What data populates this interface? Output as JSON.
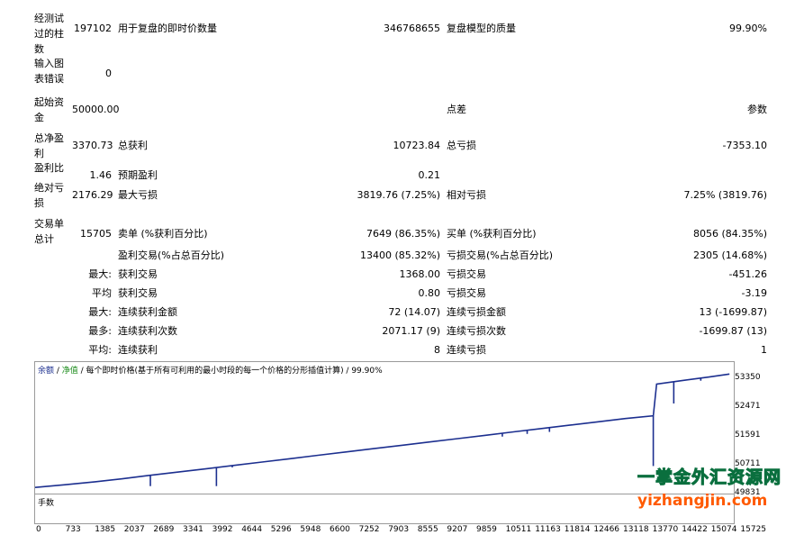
{
  "rows": [
    {
      "id": "bars",
      "label": "经测试过的柱数",
      "v1": "197102",
      "l2": "用于复盘的即时价数量",
      "v2": "346768655",
      "l3": "复盘模型的质量",
      "v3": "99.90%"
    },
    {
      "id": "errors",
      "label": "输入图表错误",
      "v1": "0",
      "l2": "",
      "v2": "",
      "l3": "",
      "v3": ""
    },
    {
      "id": "deposit",
      "label": "起始资金",
      "v1": "50000.00",
      "l2": "",
      "v2": "",
      "l3": "点差",
      "v3": "参数"
    },
    {
      "id": "netprofit",
      "label": "总净盈利",
      "v1": "3370.73",
      "l2": "总获利",
      "v2": "10723.84",
      "l3": "总亏损",
      "v3": "-7353.10"
    },
    {
      "id": "pf",
      "label": "盈利比",
      "v1": "1.46",
      "l2": "预期盈利",
      "v2": "0.21",
      "l3": "",
      "v3": ""
    },
    {
      "id": "dd",
      "label": "绝对亏损",
      "v1": "2176.29",
      "l2": "最大亏损",
      "v2": "3819.76 (7.25%)",
      "l3": "相对亏损",
      "v3": "7.25% (3819.76)"
    },
    {
      "id": "trades",
      "label": "交易单总计",
      "v1": "15705",
      "l2": "卖单 (%获利百分比)",
      "v2": "7649 (86.35%)",
      "l3": "买单 (%获利百分比)",
      "v3": "8056 (84.35%)"
    }
  ],
  "stats": [
    {
      "prefix": "",
      "l2": "盈利交易(%占总百分比)",
      "v2": "13400 (85.32%)",
      "l3": "亏损交易(%占总百分比)",
      "v3": "2305 (14.68%)"
    },
    {
      "prefix": "最大:",
      "l2": "获利交易",
      "v2": "1368.00",
      "l3": "亏损交易",
      "v3": "-451.26"
    },
    {
      "prefix": "平均",
      "l2": "获利交易",
      "v2": "0.80",
      "l3": "亏损交易",
      "v3": "-3.19"
    },
    {
      "prefix": "最大:",
      "l2": "连续获利金额",
      "v2": "72 (14.07)",
      "l3": "连续亏损金额",
      "v3": "13 (-1699.87)"
    },
    {
      "prefix": "最多:",
      "l2": "连续获利次数",
      "v2": "2071.17 (9)",
      "l3": "连续亏损次数",
      "v3": "-1699.87 (13)"
    },
    {
      "prefix": "平均:",
      "l2": "连续获利",
      "v2": "8",
      "l3": "连续亏损",
      "v3": "1"
    }
  ],
  "chart": {
    "legend_balance": "余额",
    "legend_sep1": " / ",
    "legend_equity": "净值",
    "legend_rest": " / 每个即时价格(基于所有可利用的最小时段的每一个价格的分形插值计算) / 99.90%",
    "yticks": [
      "53350",
      "52471",
      "51591",
      "50711",
      "49831"
    ],
    "volume_label": "手数",
    "xticks": [
      "0",
      "733",
      "1385",
      "2037",
      "2689",
      "3341",
      "3992",
      "4644",
      "5296",
      "5948",
      "6600",
      "7252",
      "7903",
      "8555",
      "9207",
      "9859",
      "10511",
      "11163",
      "11814",
      "12466",
      "13118",
      "13770",
      "14422",
      "15074",
      "15725"
    ],
    "balance_color": "#1c2f8f",
    "equity_color": "#1c8c1c"
  },
  "chart_data": {
    "type": "line",
    "title": "",
    "xlabel": "",
    "ylabel": "",
    "ylim": [
      49831,
      53600
    ],
    "xlim": [
      0,
      16300
    ],
    "series": [
      {
        "name": "余额",
        "x": [
          0,
          700,
          1400,
          2037,
          2600,
          3341,
          4000,
          4644,
          5296,
          5948,
          6600,
          7252,
          7903,
          8555,
          9207,
          9859,
          10511,
          11163,
          11814,
          12466,
          13118,
          13770,
          14422,
          14500,
          15074,
          15725,
          16200
        ],
        "y": [
          49960,
          50040,
          50130,
          50220,
          50310,
          50420,
          50520,
          50620,
          50720,
          50820,
          50920,
          51020,
          51120,
          51220,
          51320,
          51420,
          51520,
          51620,
          51720,
          51820,
          51920,
          52020,
          52100,
          53050,
          53150,
          53260,
          53350
        ]
      }
    ],
    "dips": [
      {
        "x": 2689,
        "y": 50000
      },
      {
        "x": 4230,
        "y": 50000
      },
      {
        "x": 4600,
        "y": 50560
      },
      {
        "x": 10900,
        "y": 51480
      },
      {
        "x": 11480,
        "y": 51560
      },
      {
        "x": 12000,
        "y": 51620
      },
      {
        "x": 14422,
        "y": 50600
      },
      {
        "x": 14900,
        "y": 52470
      },
      {
        "x": 15530,
        "y": 53150
      }
    ]
  },
  "watermark": {
    "cn": "一掌金外汇资源网",
    "url": "yizhangjin.com"
  }
}
